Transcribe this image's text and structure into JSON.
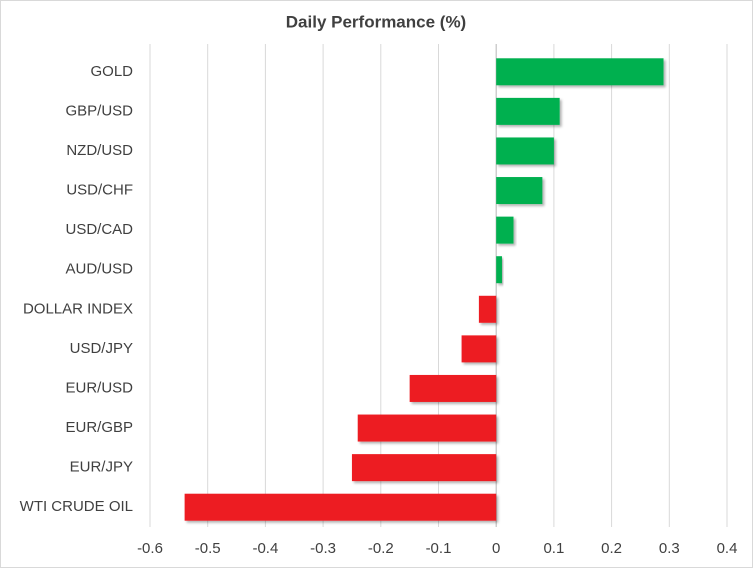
{
  "chart_data": {
    "type": "hbar",
    "title": "Daily Performance  (%)",
    "categories": [
      "GOLD",
      "GBP/USD",
      "NZD/USD",
      "USD/CHF",
      "USD/CAD",
      "AUD/USD",
      "DOLLAR INDEX",
      "USD/JPY",
      "EUR/USD",
      "EUR/GBP",
      "EUR/JPY",
      "WTI CRUDE OIL"
    ],
    "values": [
      0.29,
      0.11,
      0.1,
      0.08,
      0.03,
      0.01,
      -0.03,
      -0.06,
      -0.15,
      -0.24,
      -0.25,
      -0.54
    ],
    "colors": [
      "#00b050",
      "#00b050",
      "#00b050",
      "#00b050",
      "#00b050",
      "#00b050",
      "#ed1c24",
      "#ed1c24",
      "#ed1c24",
      "#ed1c24",
      "#ed1c24",
      "#ed1c24"
    ],
    "xlim": [
      -0.6,
      0.4
    ],
    "xticks": [
      -0.6,
      -0.5,
      -0.4,
      -0.3,
      -0.2,
      -0.1,
      0,
      0.1,
      0.2,
      0.3,
      0.4
    ],
    "grid": true
  }
}
